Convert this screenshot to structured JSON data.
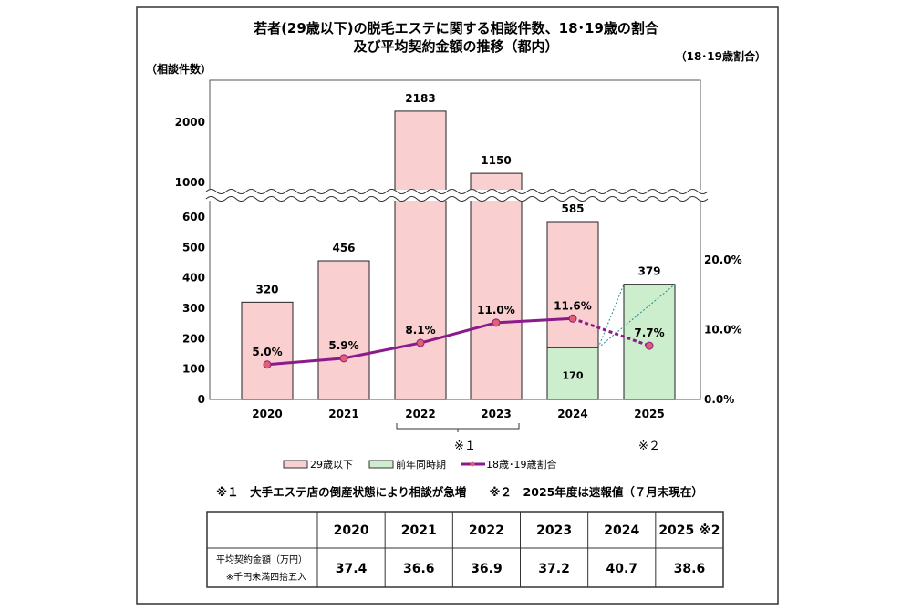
{
  "chart_data": {
    "type": "bar+line",
    "title": [
      "若者(29歳以下)の脱毛エステに関する相談件数、18･19歳の割合",
      "及び平均契約金額の推移（都内）"
    ],
    "ylabel": "（相談件数）",
    "y2label": "（18･19歳割合）",
    "categories": [
      "2020",
      "2021",
      "2022",
      "2023",
      "2024",
      "2025"
    ],
    "yticks": [
      0,
      100,
      200,
      300,
      400,
      500,
      600,
      1000,
      2000
    ],
    "y2ticks": [
      "0.0%",
      "10.0%",
      "20.0%"
    ],
    "axis_break": "600-1000",
    "series": [
      {
        "name": "29歳以下",
        "type": "bar",
        "color": "#f9cfd0",
        "stroke": "#222222",
        "values": [
          320,
          456,
          2183,
          1150,
          585,
          null
        ],
        "labels": [
          "320",
          "456",
          "2183",
          "1150",
          "585",
          ""
        ]
      },
      {
        "name": "前年同時期",
        "type": "bar",
        "color": "#cdeecd",
        "stroke": "#222222",
        "values": [
          null,
          null,
          null,
          null,
          170,
          379
        ],
        "labels": [
          "",
          "",
          "",
          "",
          "170",
          "379"
        ]
      },
      {
        "name": "18歳･19歳割合",
        "type": "line",
        "axis": "right",
        "color": "#8b1a8b",
        "values": [
          5.0,
          5.9,
          8.1,
          11.0,
          11.6,
          7.7
        ],
        "labels": [
          "5.0%",
          "5.9%",
          "8.1%",
          "11.0%",
          "11.6%",
          "7.7%"
        ],
        "last_segment": "dashed"
      }
    ],
    "annotations": {
      "bracket_2022_2023": "※１",
      "note_2025": "※２"
    },
    "notes": "※１　大手エステ店の倒産状態により相談が急増　　※２　2025年度は速報値（７月末現在）",
    "table": {
      "headers": [
        "",
        "2020",
        "2021",
        "2022",
        "2023",
        "2024",
        "2025 ※2"
      ],
      "row_label": "平均契約金額（万円）",
      "row_sublabel": "※千円未満四捨五入",
      "values": [
        "37.4",
        "36.6",
        "36.9",
        "37.2",
        "40.7",
        "38.6"
      ]
    }
  }
}
